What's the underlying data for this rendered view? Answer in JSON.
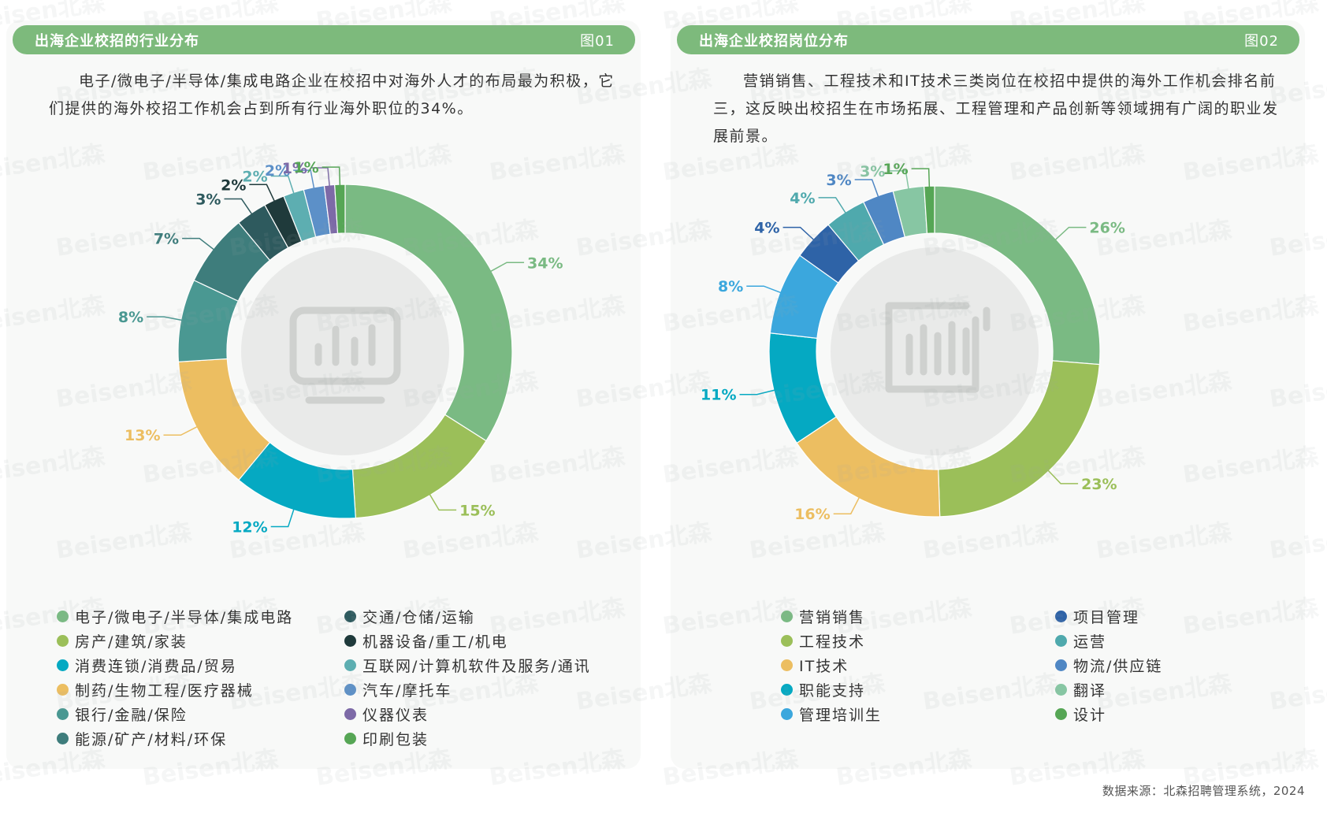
{
  "panels": [
    {
      "title": "出海企业校招的行业分布",
      "fig": "图01",
      "desc": "电子/微电子/半导体/集成电路企业在校招中对海外人才的布局最为积极，它们提供的海外校招工作机会占到所有行业海外职位的34%。"
    },
    {
      "title": "出海企业校招岗位分布",
      "fig": "图02",
      "desc": "营销销售、工程技术和IT技术三类岗位在校招中提供的海外工作机会排名前三，这反映出校招生在市场拓展、工程管理和产品创新等领域拥有广阔的职业发展前景。"
    }
  ],
  "chart_data": [
    {
      "type": "pie",
      "variant": "donut",
      "title": "出海企业校招的行业分布",
      "categories": [
        "电子/微电子/半导体/集成电路",
        "房产/建筑/家装",
        "消费连锁/消费品/贸易",
        "制药/生物工程/医疗器械",
        "银行/金融/保险",
        "能源/矿产/材料/环保",
        "交通/仓储/运输",
        "机器设备/重工/机电",
        "互联网/计算机软件及服务/通讯",
        "汽车/摩托车",
        "仪器仪表",
        "印刷包装"
      ],
      "values": [
        34,
        15,
        12,
        13,
        8,
        7,
        3,
        2,
        2,
        2,
        1,
        1
      ],
      "labels": [
        "34%",
        "15%",
        "12%",
        "13%",
        "8%",
        "7%",
        "3%",
        "2%",
        "2%",
        "2%",
        "1%",
        "1%"
      ],
      "colors": [
        "#7aba83",
        "#9bbf59",
        "#05a9c2",
        "#ecbe61",
        "#4a9892",
        "#3e7d7c",
        "#2e5a5e",
        "#1f3a3b",
        "#5daeb1",
        "#5c90c8",
        "#7d6aa7",
        "#56a655"
      ],
      "legend_position": "bottom",
      "legend_order": [
        0,
        1,
        2,
        3,
        4,
        5,
        6,
        7,
        8,
        9,
        10,
        11
      ]
    },
    {
      "type": "pie",
      "variant": "donut",
      "title": "出海企业校招岗位分布",
      "categories": [
        "营销销售",
        "工程技术",
        "IT技术",
        "职能支持",
        "管理培训生",
        "项目管理",
        "运营",
        "物流/供应链",
        "翻译",
        "设计"
      ],
      "values": [
        26,
        23,
        16,
        11,
        8,
        4,
        4,
        3,
        3,
        1
      ],
      "labels": [
        "26%",
        "23%",
        "16%",
        "11%",
        "8%",
        "4%",
        "4%",
        "3%",
        "3%",
        "1%"
      ],
      "colors": [
        "#7aba83",
        "#9bbf59",
        "#ecbe61",
        "#05a9c2",
        "#3ba7dd",
        "#2e63a7",
        "#4fa9ad",
        "#4f87c4",
        "#87c6a3",
        "#56a655"
      ],
      "legend_position": "bottom",
      "legend_order": [
        0,
        1,
        2,
        3,
        4,
        5,
        6,
        7,
        8,
        9
      ]
    }
  ],
  "watermark_text": "Beisen北森",
  "source": "数据来源：北森招聘管理系统，2024",
  "center_icon": "bar-chart-monitor-icon"
}
